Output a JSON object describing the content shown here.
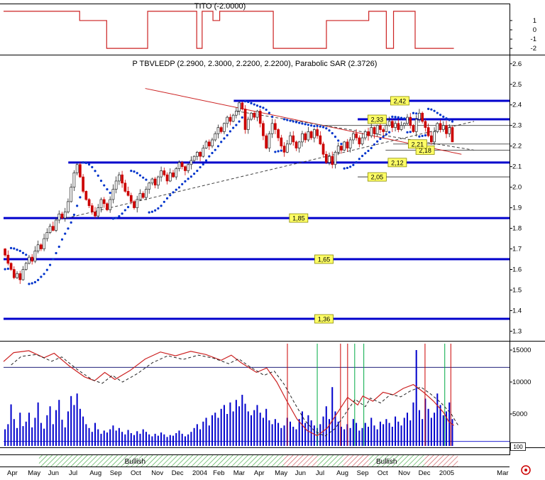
{
  "misc": {
    "zoom_label": "100"
  },
  "ribbon": {
    "green_color": "#44aa44",
    "red_color": "#cc5555",
    "text_color": "#008800",
    "segments": [
      {
        "from": 0.07,
        "to": 0.554,
        "state": "green"
      },
      {
        "from": 0.554,
        "to": 0.62,
        "state": "red"
      },
      {
        "from": 0.62,
        "to": 0.672,
        "state": "green"
      },
      {
        "from": 0.672,
        "to": 0.722,
        "state": "red"
      },
      {
        "from": 0.722,
        "to": 0.832,
        "state": "green"
      },
      {
        "from": 0.832,
        "to": 0.898,
        "state": "red"
      }
    ],
    "labels": [
      {
        "text": "Bullish",
        "x": 0.26
      },
      {
        "text": "Bullish",
        "x": 0.757
      }
    ]
  },
  "xaxis": {
    "labels": [
      {
        "t": "Apr",
        "x": 0.007
      },
      {
        "t": "May",
        "x": 0.048
      },
      {
        "t": "Jun",
        "x": 0.088
      },
      {
        "t": "Jul",
        "x": 0.129
      },
      {
        "t": "Aug",
        "x": 0.17
      },
      {
        "t": "Sep",
        "x": 0.21
      },
      {
        "t": "Oct",
        "x": 0.251
      },
      {
        "t": "Nov",
        "x": 0.292
      },
      {
        "t": "Dec",
        "x": 0.332
      },
      {
        "t": "2004",
        "x": 0.373
      },
      {
        "t": "Feb",
        "x": 0.414
      },
      {
        "t": "Mar",
        "x": 0.454
      },
      {
        "t": "Apr",
        "x": 0.495
      },
      {
        "t": "May",
        "x": 0.536
      },
      {
        "t": "Jun",
        "x": 0.576
      },
      {
        "t": "Jul",
        "x": 0.617
      },
      {
        "t": "Aug",
        "x": 0.658
      },
      {
        "t": "Sep",
        "x": 0.698
      },
      {
        "t": "Oct",
        "x": 0.739
      },
      {
        "t": "Nov",
        "x": 0.78
      },
      {
        "t": "Dec",
        "x": 0.82
      },
      {
        "t": "2005",
        "x": 0.861
      },
      {
        "t": "Mar",
        "x": 0.975
      }
    ]
  },
  "chart_data": [
    {
      "type": "line",
      "name": "TITO indicator",
      "title": "TITO (-2.0000)",
      "last_value": -2.0,
      "ylim": [
        -2.6,
        2.6
      ],
      "yticks": [
        1,
        0,
        -1,
        -2
      ],
      "line_color": "#cc2222",
      "steps": [
        [
          0,
          2
        ],
        [
          0.169,
          1
        ],
        [
          0.229,
          -2
        ],
        [
          0.32,
          2
        ],
        [
          0.429,
          -2
        ],
        [
          0.441,
          2
        ],
        [
          0.465,
          1
        ],
        [
          0.48,
          2
        ],
        [
          0.599,
          -2
        ],
        [
          0.717,
          1
        ],
        [
          0.811,
          2
        ],
        [
          0.85,
          -2
        ],
        [
          0.866,
          2
        ],
        [
          0.914,
          -2
        ]
      ]
    },
    {
      "type": "candlestick",
      "name": "price",
      "title": "P TBVLEDP (2.2900, 2.3000, 2.2200, 2.2200), Parabolic SAR (2.3726)",
      "last_ohlc": [
        2.29,
        2.3,
        2.22,
        2.22
      ],
      "parabolic_sar": 2.3726,
      "ylim": [
        1.26,
        2.62
      ],
      "yticks": [
        2.6,
        2.5,
        2.4,
        2.3,
        2.2,
        2.1,
        2.0,
        1.9,
        1.8,
        1.7,
        1.6,
        1.5,
        1.4,
        1.3
      ],
      "up_color": "#ffffff",
      "down_color": "#cc0000",
      "sar_color": "#0033cc",
      "closes": [
        1.67,
        1.63,
        1.6,
        1.56,
        1.58,
        1.55,
        1.6,
        1.63,
        1.66,
        1.64,
        1.69,
        1.72,
        1.7,
        1.75,
        1.78,
        1.81,
        1.79,
        1.84,
        1.87,
        1.85,
        1.88,
        1.93,
        2.0,
        2.07,
        2.11,
        2.05,
        1.98,
        1.94,
        1.91,
        1.88,
        1.86,
        1.9,
        1.94,
        1.92,
        1.89,
        1.94,
        1.99,
        2.03,
        2.06,
        2.02,
        1.98,
        1.96,
        1.93,
        1.9,
        1.94,
        1.97,
        1.95,
        1.99,
        2.02,
        2.04,
        2.01,
        2.05,
        2.08,
        2.06,
        2.03,
        2.07,
        2.05,
        2.09,
        2.12,
        2.1,
        2.08,
        2.11,
        2.13,
        2.15,
        2.17,
        2.15,
        2.19,
        2.22,
        2.2,
        2.23,
        2.26,
        2.29,
        2.27,
        2.31,
        2.34,
        2.32,
        2.35,
        2.37,
        2.41,
        2.38,
        2.28,
        2.33,
        2.36,
        2.34,
        2.37,
        2.31,
        2.25,
        2.19,
        2.26,
        2.31,
        2.28,
        2.24,
        2.2,
        2.17,
        2.21,
        2.25,
        2.22,
        2.19,
        2.22,
        2.26,
        2.23,
        2.27,
        2.24,
        2.28,
        2.25,
        2.21,
        2.16,
        2.12,
        2.15,
        2.11,
        2.17,
        2.2,
        2.18,
        2.22,
        2.19,
        2.23,
        2.26,
        2.24,
        2.21,
        2.24,
        2.27,
        2.25,
        2.29,
        2.26,
        2.3,
        2.28,
        2.27,
        2.3,
        2.32,
        2.29,
        2.31,
        2.28,
        2.3,
        2.31,
        2.34,
        2.3,
        2.27,
        2.33,
        2.36,
        2.32,
        2.29,
        2.25,
        2.22,
        2.27,
        2.31,
        2.28,
        2.3,
        2.26,
        2.29,
        2.22
      ],
      "levels": [
        {
          "label": "2,42",
          "value": 2.42,
          "from": 0.455,
          "style": "major",
          "label_x": 0.765
        },
        {
          "label": "2,33",
          "value": 2.33,
          "from": 0.7,
          "style": "major",
          "label_x": 0.72
        },
        {
          "label": null,
          "value": 2.3,
          "from": 0.63,
          "style": "minor",
          "label_x": null
        },
        {
          "label": "2,18",
          "value": 2.18,
          "from": 0.755,
          "style": "minor",
          "label_x": 0.815
        },
        {
          "label": "2,21",
          "value": 2.21,
          "from": 0.77,
          "style": "minor",
          "label_x": 0.8
        },
        {
          "label": "2,12",
          "value": 2.12,
          "from": 0.128,
          "style": "major",
          "label_x": 0.76
        },
        {
          "label": "2,05",
          "value": 2.05,
          "from": 0.7,
          "style": "minor",
          "label_x": 0.72
        },
        {
          "label": "1,85",
          "value": 1.85,
          "from": 0.0,
          "style": "major",
          "label_x": 0.565
        },
        {
          "label": "1,65",
          "value": 1.65,
          "from": 0.0,
          "style": "major",
          "label_x": 0.615
        },
        {
          "label": "1,36",
          "value": 1.36,
          "from": 0.0,
          "style": "major",
          "label_x": 0.615
        }
      ],
      "trendlines": [
        {
          "style": "solid",
          "color": "#cc2222",
          "x1": 0.28,
          "y1": 2.48,
          "x2": 0.905,
          "y2": 2.16
        },
        {
          "style": "dashed",
          "color": "#404040",
          "x1": 0.125,
          "y1": 1.85,
          "x2": 0.93,
          "y2": 2.32
        },
        {
          "style": "dashed",
          "color": "#404040",
          "x1": 0.46,
          "y1": 2.37,
          "x2": 0.93,
          "y2": 2.18
        }
      ]
    },
    {
      "type": "bar",
      "name": "volume",
      "yticks": [
        15000,
        10000,
        5000
      ],
      "ymax": 16000,
      "bar_color": "#0000cc",
      "values": [
        2600,
        3400,
        6500,
        4200,
        2800,
        5200,
        3100,
        3800,
        5200,
        2900,
        4400,
        6800,
        3600,
        2700,
        4800,
        6200,
        3400,
        5600,
        7200,
        4100,
        2900,
        5400,
        7800,
        6400,
        8200,
        5800,
        4600,
        3400,
        2800,
        2200,
        3600,
        2600,
        1900,
        2400,
        2100,
        2600,
        3200,
        2400,
        2800,
        2200,
        1800,
        2500,
        2000,
        1700,
        2300,
        1900,
        2600,
        2200,
        1800,
        1500,
        1900,
        1600,
        2100,
        1800,
        1400,
        1700,
        1600,
        2000,
        2400,
        1900,
        1500,
        1800,
        2200,
        2800,
        3400,
        2600,
        3800,
        4400,
        3200,
        4800,
        5200,
        4400,
        5800,
        6400,
        5000,
        6800,
        5400,
        7200,
        6200,
        8000,
        6600,
        5400,
        4800,
        5600,
        6400,
        5200,
        4400,
        5800,
        4000,
        3400,
        4200,
        3600,
        2800,
        3200,
        4400,
        3800,
        3000,
        2600,
        4200,
        5400,
        3600,
        4800,
        4000,
        3200,
        2800,
        3400,
        4600,
        6200,
        4200,
        9200,
        5400,
        3800,
        3000,
        2600,
        3400,
        2800,
        4200,
        3600,
        2400,
        2800,
        3600,
        3000,
        4400,
        3200,
        2600,
        3800,
        3400,
        4200,
        3600,
        3000,
        4600,
        3800,
        3200,
        4400,
        5200,
        4000,
        6800,
        15000,
        5600,
        4200,
        7400,
        5800,
        4400,
        5200,
        8200,
        6400,
        4800,
        5400,
        6800,
        4200
      ],
      "signal_lines": {
        "red": [
          0.561,
          0.666,
          0.68,
          0.833,
          0.884
        ],
        "green": [
          0.62,
          0.694,
          0.712,
          0.872
        ]
      },
      "threshold_lines": [
        {
          "value": 12300,
          "color": "#000066"
        },
        {
          "value": 700,
          "color": "#0000cc"
        }
      ],
      "overlay": {
        "solid_color": "#cc2222",
        "dashed_color": "#222222",
        "points": [
          [
            0,
            13200
          ],
          [
            0.02,
            14600
          ],
          [
            0.05,
            14900
          ],
          [
            0.08,
            13800
          ],
          [
            0.1,
            14500
          ],
          [
            0.13,
            12500
          ],
          [
            0.16,
            10800
          ],
          [
            0.18,
            10200
          ],
          [
            0.2,
            11500
          ],
          [
            0.22,
            10400
          ],
          [
            0.25,
            11800
          ],
          [
            0.28,
            13600
          ],
          [
            0.31,
            14700
          ],
          [
            0.34,
            14100
          ],
          [
            0.37,
            14800
          ],
          [
            0.4,
            14300
          ],
          [
            0.43,
            13400
          ],
          [
            0.45,
            14200
          ],
          [
            0.47,
            13000
          ],
          [
            0.5,
            11500
          ],
          [
            0.52,
            12200
          ],
          [
            0.54,
            10000
          ],
          [
            0.56,
            7000
          ],
          [
            0.58,
            4200
          ],
          [
            0.6,
            2400
          ],
          [
            0.62,
            1600
          ],
          [
            0.64,
            2800
          ],
          [
            0.66,
            5200
          ],
          [
            0.68,
            7600
          ],
          [
            0.7,
            6400
          ],
          [
            0.71,
            7800
          ],
          [
            0.73,
            7000
          ],
          [
            0.75,
            8400
          ],
          [
            0.77,
            8000
          ],
          [
            0.79,
            9000
          ],
          [
            0.81,
            9600
          ],
          [
            0.83,
            8400
          ],
          [
            0.85,
            7000
          ],
          [
            0.87,
            5200
          ],
          [
            0.88,
            3800
          ],
          [
            0.89,
            3200
          ]
        ]
      }
    }
  ]
}
